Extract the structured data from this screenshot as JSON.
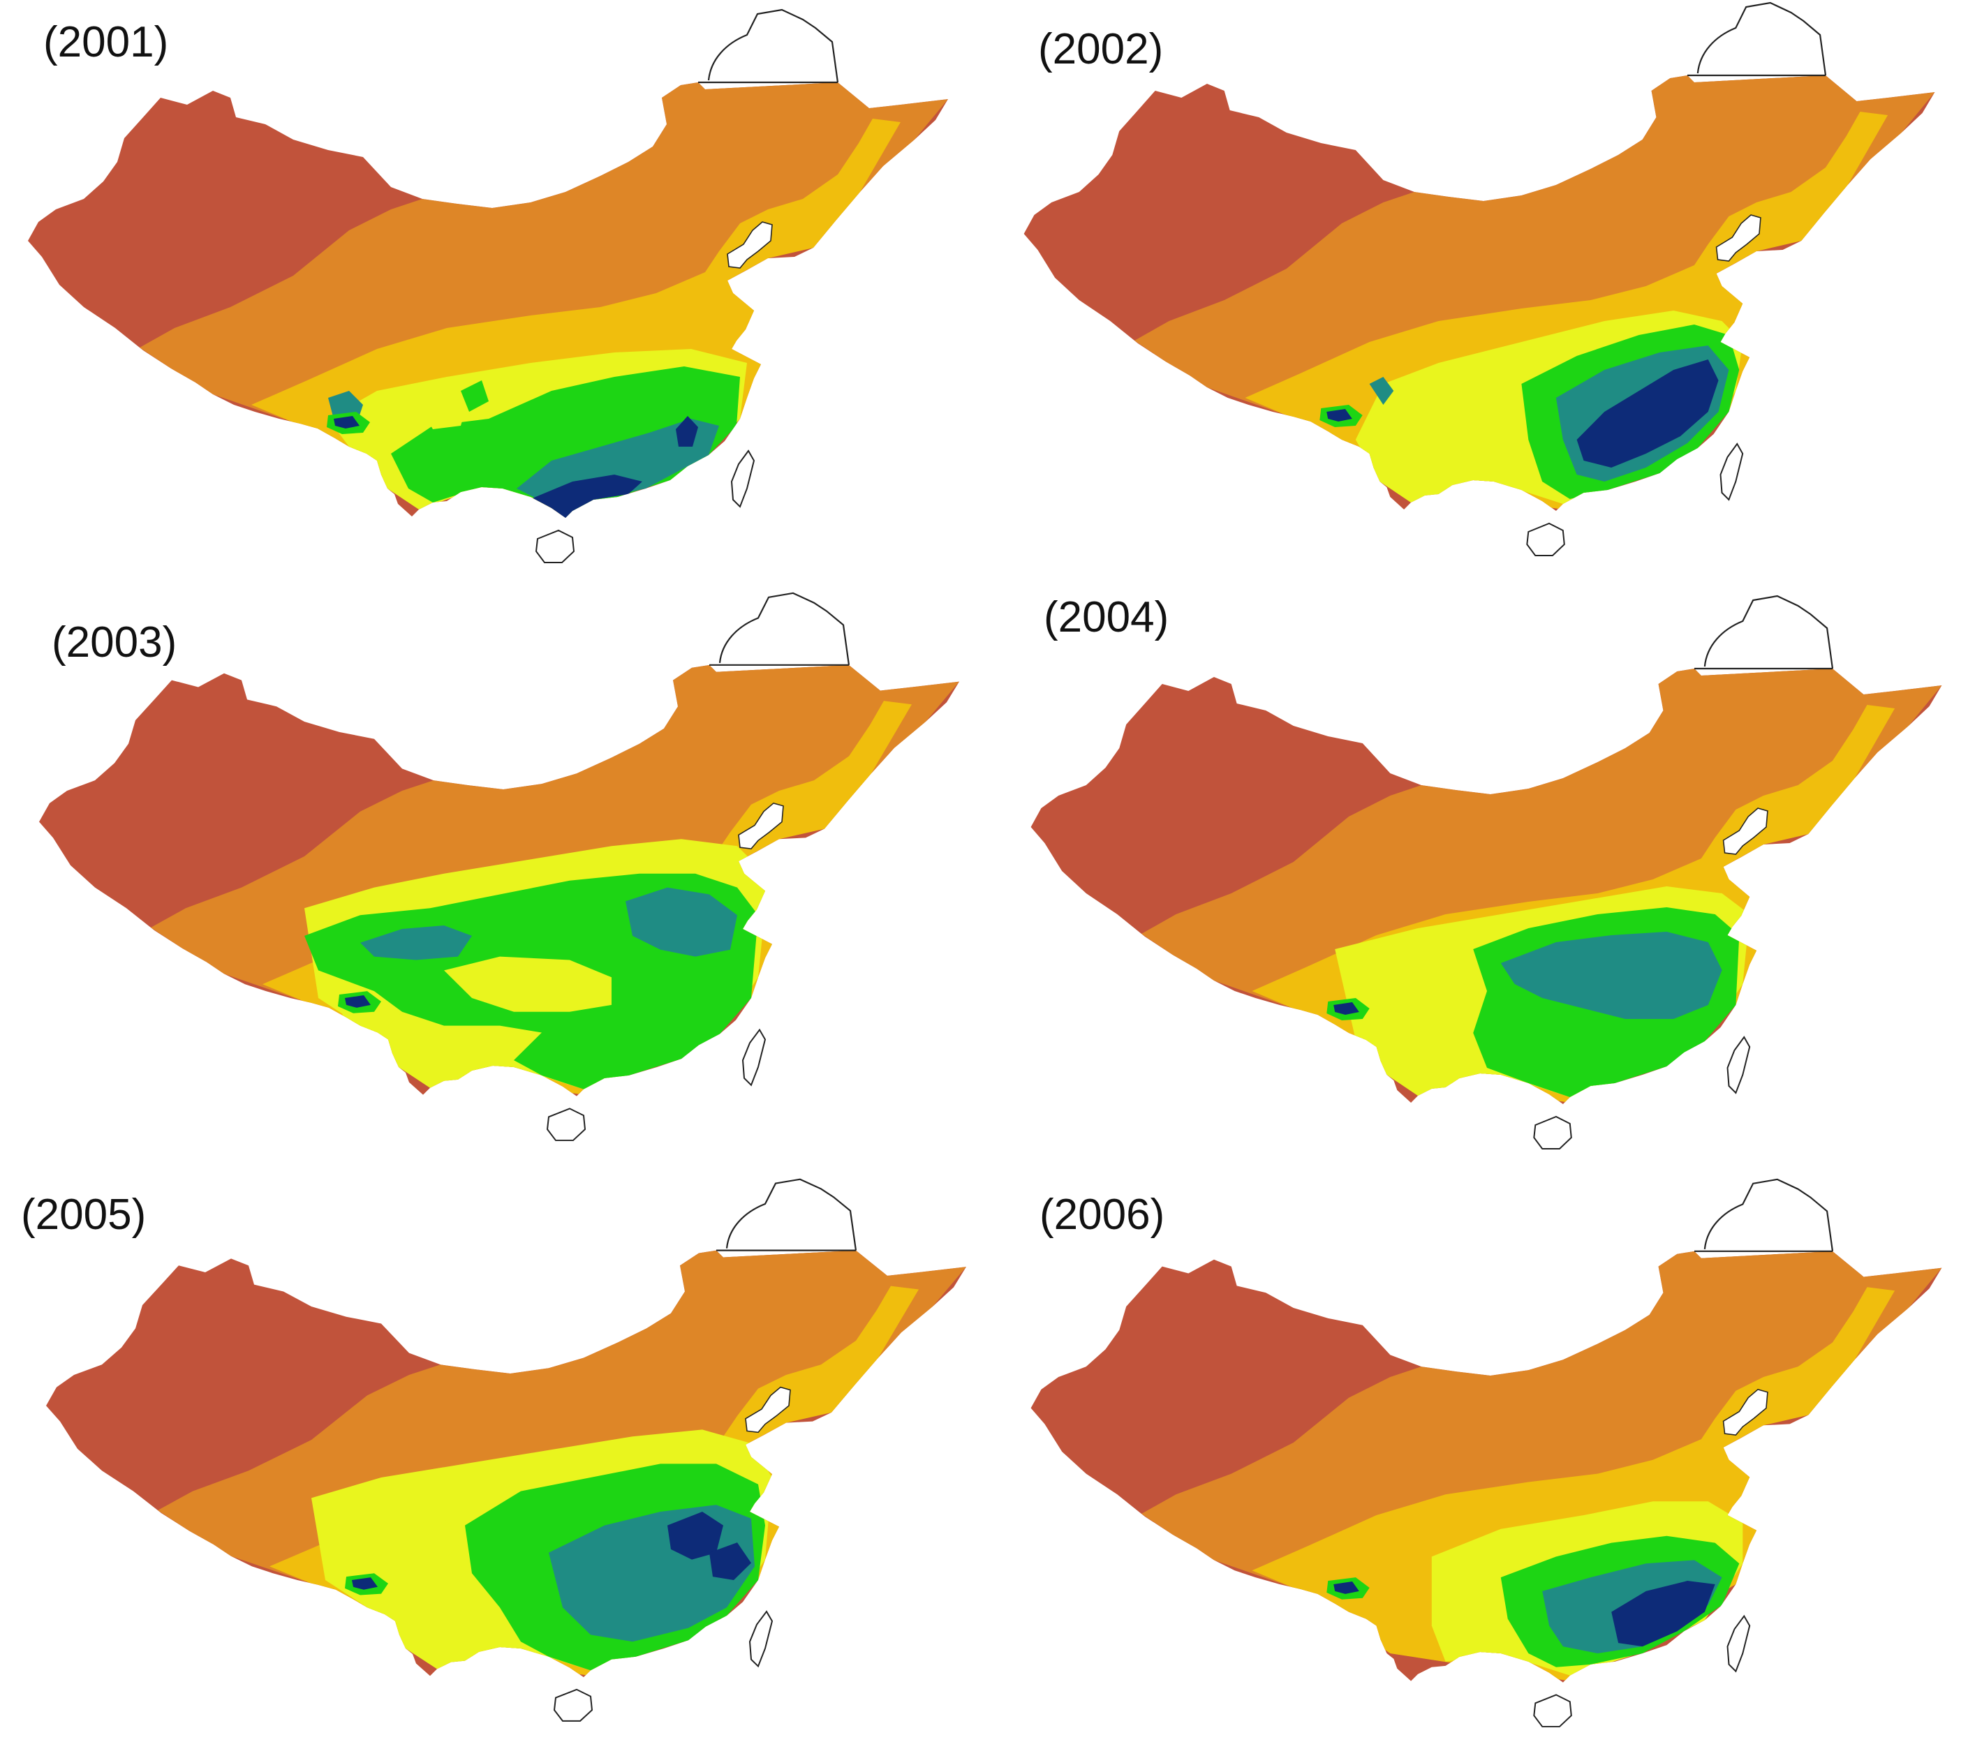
{
  "figure": {
    "colors": {
      "c1": "#C1533B",
      "c2": "#DE8627",
      "c3": "#F0BE0D",
      "c4": "#E9F51E",
      "c5": "#1DD514",
      "c6": "#1F8C84",
      "c7": "#0D2B78",
      "outline": "#222222"
    },
    "panels": [
      {
        "label": "(2001)",
        "key": "2001"
      },
      {
        "label": "(2002)",
        "key": "2002"
      },
      {
        "label": "(2003)",
        "key": "2003"
      },
      {
        "label": "(2004)",
        "key": "2004"
      },
      {
        "label": "(2005)",
        "key": "2005"
      },
      {
        "label": "(2006)",
        "key": "2006"
      }
    ]
  }
}
